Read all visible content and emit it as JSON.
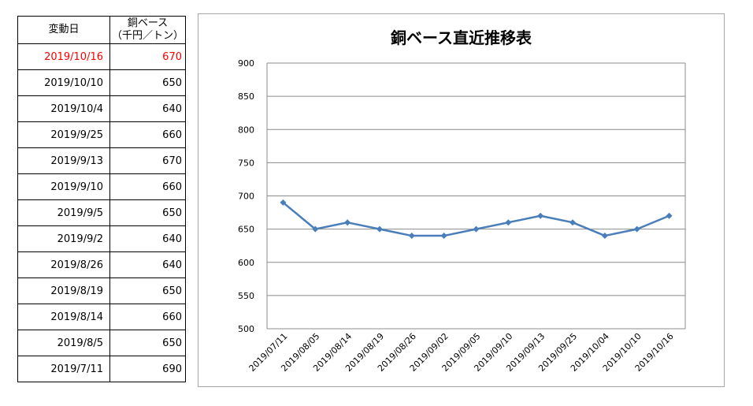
{
  "table": {
    "header_date": "変動日",
    "header_value_line1": "銅ベース",
    "header_value_line2": "（千円／トン）",
    "rows": [
      {
        "date": "2019/10/16",
        "value": "670"
      },
      {
        "date": "2019/10/10",
        "value": "650"
      },
      {
        "date": "2019/10/4",
        "value": "640"
      },
      {
        "date": "2019/9/25",
        "value": "660"
      },
      {
        "date": "2019/9/13",
        "value": "670"
      },
      {
        "date": "2019/9/10",
        "value": "660"
      },
      {
        "date": "2019/9/5",
        "value": "650"
      },
      {
        "date": "2019/9/2",
        "value": "640"
      },
      {
        "date": "2019/8/26",
        "value": "640"
      },
      {
        "date": "2019/8/19",
        "value": "650"
      },
      {
        "date": "2019/8/14",
        "value": "660"
      },
      {
        "date": "2019/8/5",
        "value": "650"
      },
      {
        "date": "2019/7/11",
        "value": "690"
      }
    ],
    "highlight_color": "#ff0000"
  },
  "chart_data": {
    "type": "line",
    "title": "銅ベース直近推移表",
    "xlabel": "",
    "ylabel": "",
    "categories": [
      "2019/07/11",
      "2019/08/05",
      "2019/08/14",
      "2019/08/19",
      "2019/08/26",
      "2019/09/02",
      "2019/09/05",
      "2019/09/10",
      "2019/09/13",
      "2019/09/25",
      "2019/10/04",
      "2019/10/10",
      "2019/10/16"
    ],
    "series": [
      {
        "values": [
          690,
          650,
          660,
          650,
          640,
          640,
          650,
          660,
          670,
          660,
          640,
          650,
          670
        ],
        "color": "#4a7ebb"
      }
    ],
    "ylim": [
      500,
      900
    ],
    "yticks": [
      500,
      550,
      600,
      650,
      700,
      750,
      800,
      850,
      900
    ],
    "grid": "horizontal",
    "legend": "none",
    "marker": "diamond"
  }
}
